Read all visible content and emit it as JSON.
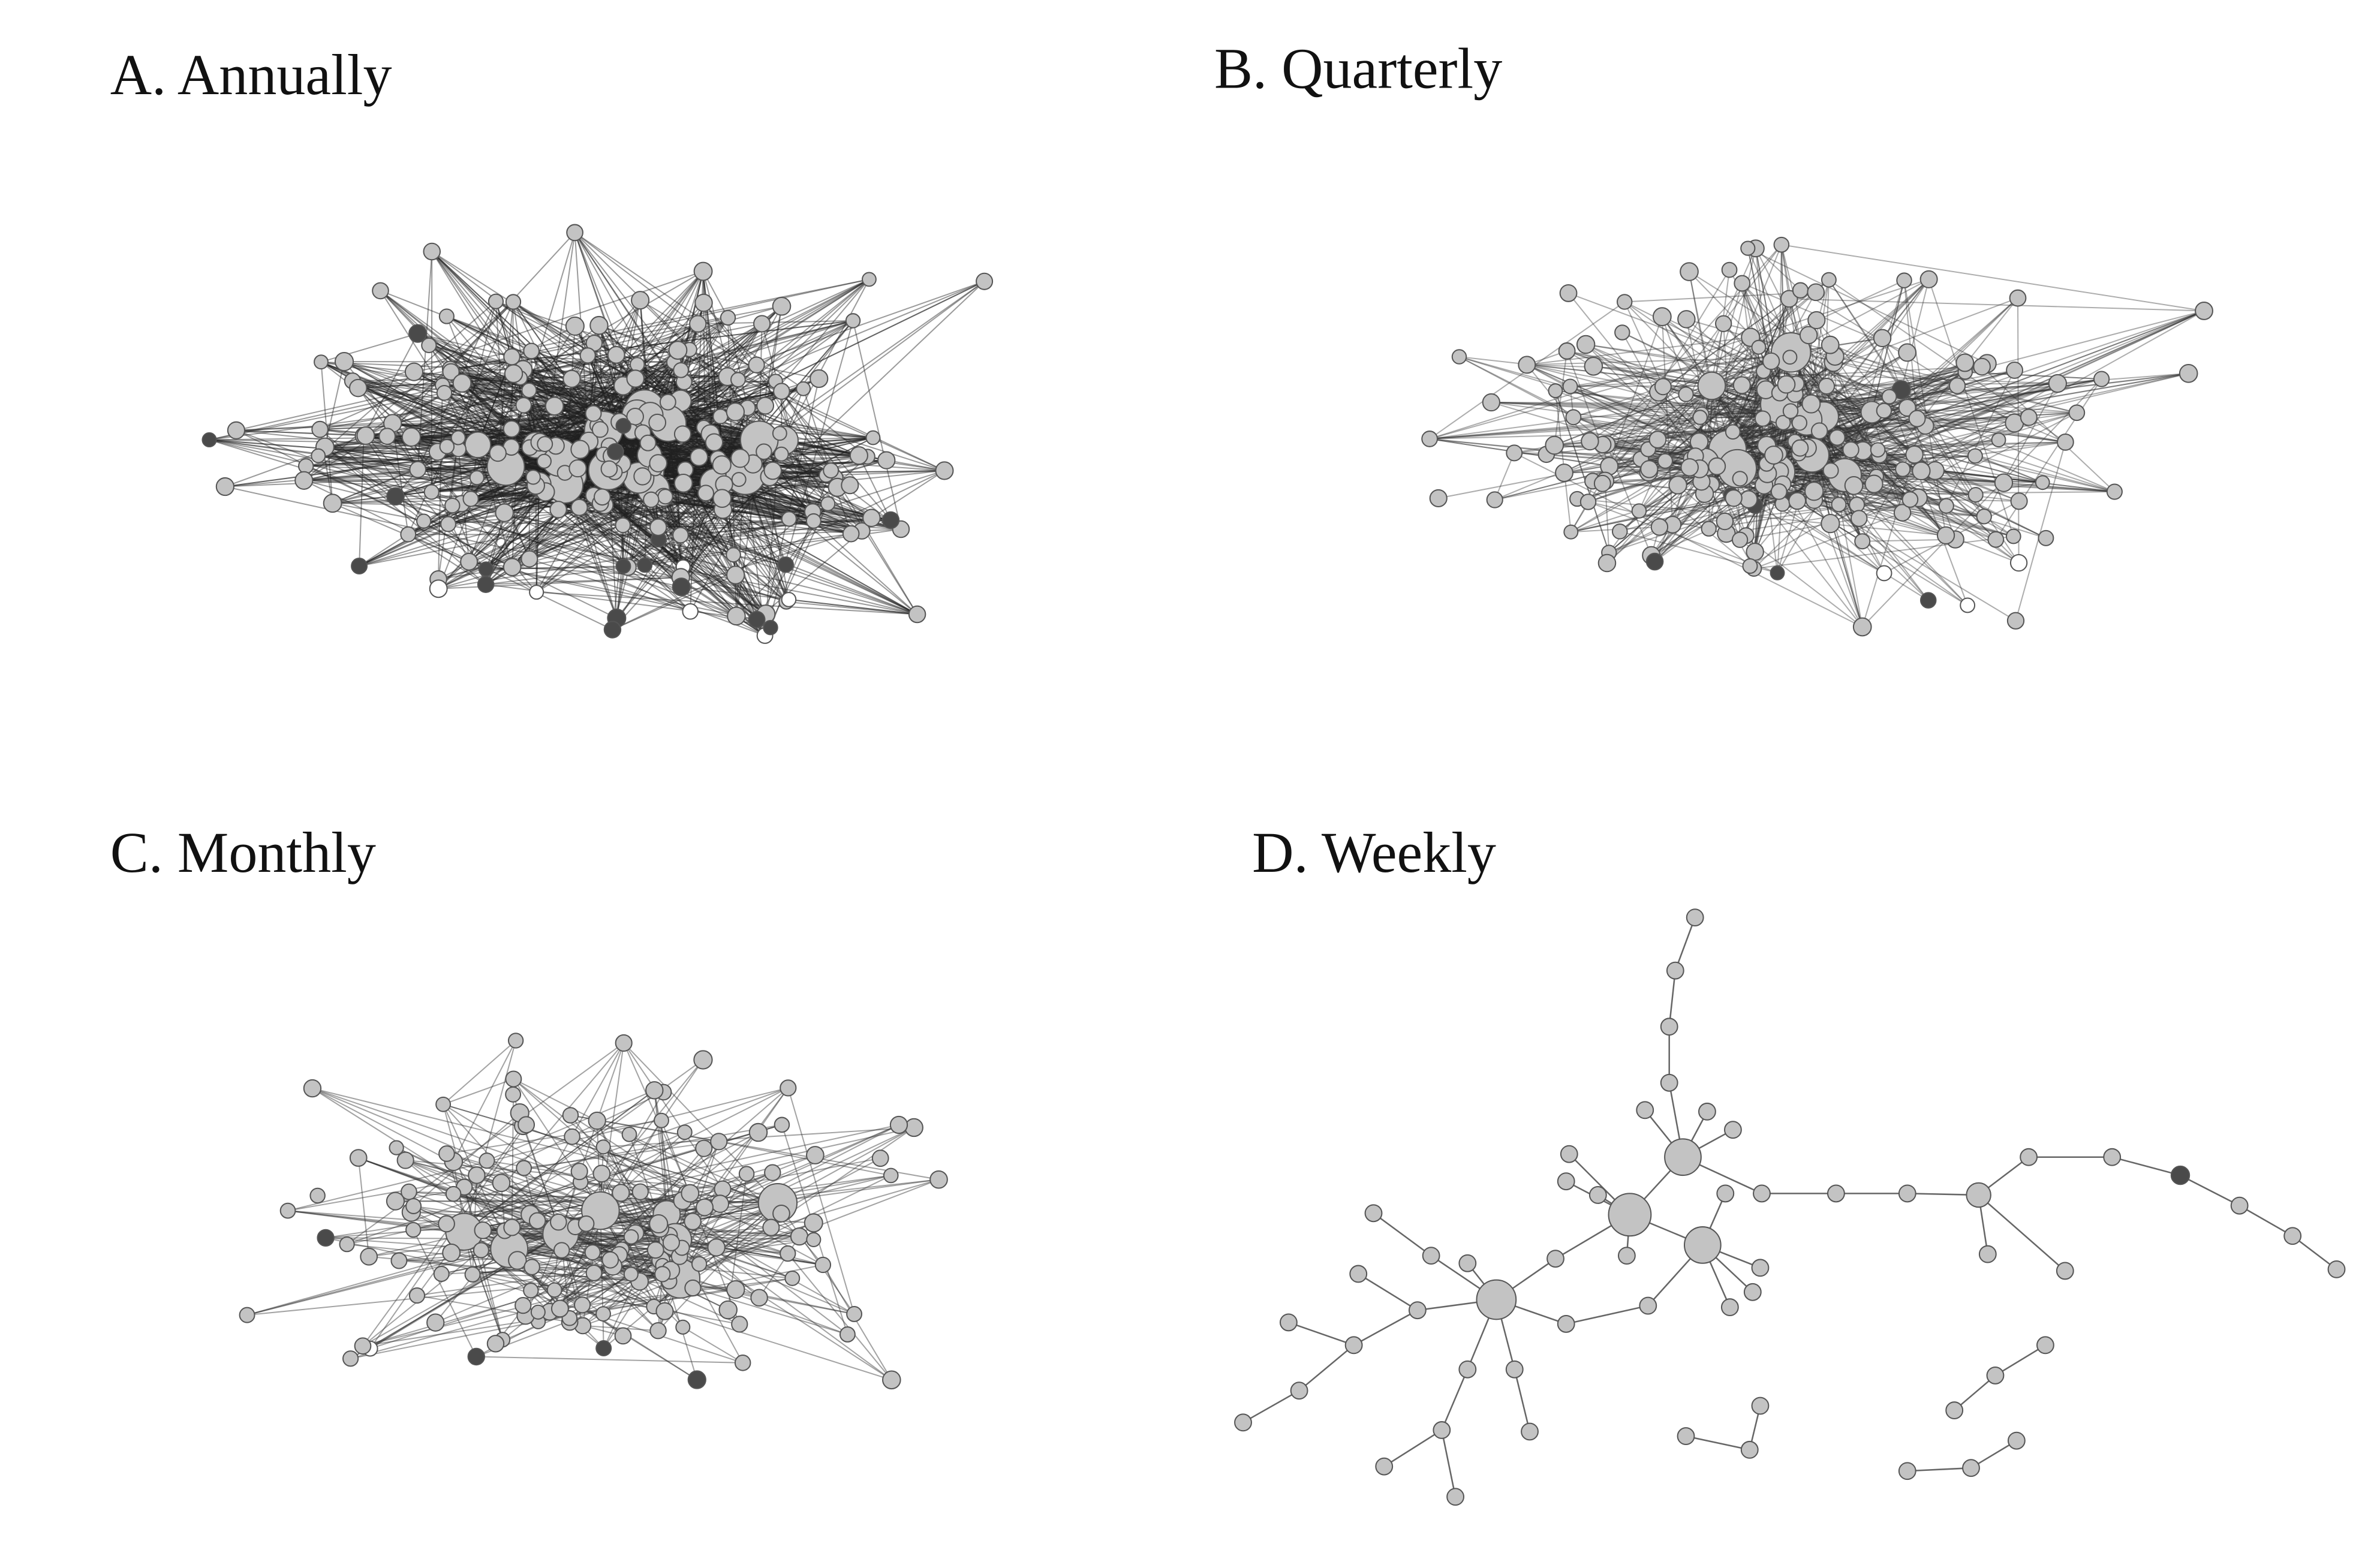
{
  "panels": [
    {
      "title": "A. Annually"
    },
    {
      "title": "B. Quarterly"
    },
    {
      "title": "C. Monthly"
    },
    {
      "title": "D. Weekly"
    }
  ]
}
